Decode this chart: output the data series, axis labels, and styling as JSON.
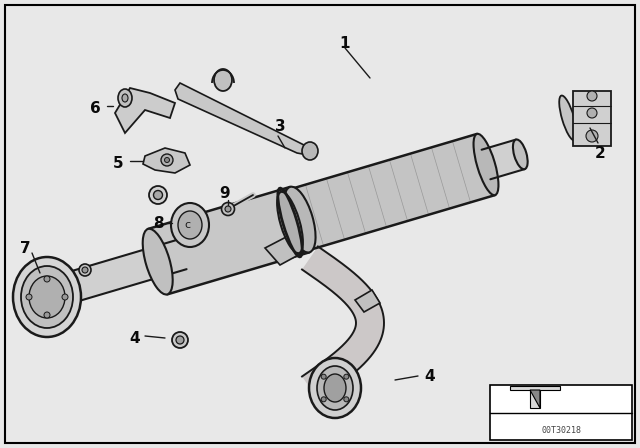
{
  "background_color": "#e8e8e8",
  "line_color": "#1a1a1a",
  "white": "#ffffff",
  "light_gray": "#d0d0d0",
  "mid_gray": "#b0b0b0",
  "watermark": "00T30218",
  "figsize": [
    6.4,
    4.48
  ],
  "dpi": 100
}
